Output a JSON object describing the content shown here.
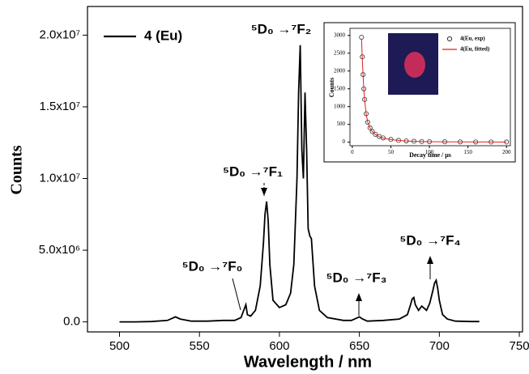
{
  "chart_data": [
    {
      "type": "line",
      "xlabel": "Wavelength / nm",
      "ylabel": "Counts",
      "x": [
        500,
        510,
        520,
        530,
        533,
        535,
        538,
        545,
        555,
        565,
        572,
        576,
        578,
        579,
        580,
        582,
        585,
        588,
        590,
        591,
        592,
        593,
        594,
        596,
        600,
        604,
        607,
        609,
        611,
        612,
        613,
        614,
        615,
        616,
        617,
        618,
        619,
        620,
        622,
        625,
        630,
        640,
        645,
        648,
        650,
        652,
        655,
        665,
        675,
        680,
        682,
        683,
        684,
        685,
        687,
        689,
        690,
        692,
        694,
        696,
        697,
        698,
        699,
        700,
        702,
        705,
        710,
        720,
        725
      ],
      "series": [
        {
          "name": "4 (Eu)",
          "color": "#000000",
          "values": [
            0,
            0,
            20000,
            100000,
            250000,
            350000,
            200000,
            50000,
            50000,
            100000,
            100000,
            300000,
            900000,
            1200000,
            500000,
            400000,
            800000,
            2500000,
            5500000,
            7500000,
            8400000,
            7000000,
            4000000,
            1500000,
            1000000,
            1200000,
            2000000,
            4000000,
            10000000,
            16000000,
            19300000,
            12000000,
            10000000,
            16000000,
            12000000,
            6500000,
            6000000,
            5800000,
            2500000,
            800000,
            300000,
            100000,
            100000,
            250000,
            350000,
            200000,
            50000,
            100000,
            200000,
            500000,
            1200000,
            1600000,
            1700000,
            1200000,
            800000,
            1100000,
            1000000,
            800000,
            1300000,
            2200000,
            2700000,
            2900000,
            2300000,
            1500000,
            500000,
            200000,
            50000,
            20000,
            20000
          ]
        }
      ],
      "xlim": [
        480,
        752
      ],
      "xticks": [
        500,
        550,
        600,
        650,
        700,
        750
      ],
      "ylim": [
        -700000,
        22000000
      ],
      "yticks": [
        {
          "value": 0,
          "label": "0.0"
        },
        {
          "value": 5000000,
          "label": "5.0x10⁶"
        },
        {
          "value": 10000000,
          "label": "1.0x10⁷"
        },
        {
          "value": 15000000,
          "label": "1.5x10⁷"
        },
        {
          "value": 20000000,
          "label": "2.0x10⁷"
        }
      ],
      "annotations": [
        "⁵D₀ →⁷F₀",
        "⁵D₀ →⁷F₁",
        "⁵D₀ →⁷F₂",
        "⁵D₀ →⁷F₃",
        "⁵D₀ →⁷F₄"
      ],
      "legend": "upper left"
    },
    {
      "type": "line",
      "xlabel": "Decay time / μs",
      "ylabel": "Counts",
      "x": [
        12,
        13,
        14,
        15,
        16,
        18,
        20,
        23,
        26,
        30,
        35,
        40,
        50,
        60,
        70,
        80,
        90,
        100,
        120,
        140,
        160,
        180,
        200
      ],
      "series": [
        {
          "name": "4(Eu, exp)",
          "color": "#333333",
          "marker": "circle",
          "values": [
            2950,
            2400,
            1900,
            1500,
            1200,
            800,
            560,
            400,
            300,
            220,
            160,
            120,
            75,
            50,
            35,
            25,
            18,
            14,
            10,
            8,
            6,
            5,
            4
          ]
        },
        {
          "name": "4(Eu, fitted)",
          "color": "#e02020",
          "marker": "none",
          "values": [
            2900,
            2350,
            1880,
            1490,
            1190,
            790,
            560,
            395,
            295,
            215,
            155,
            115,
            72,
            48,
            34,
            24,
            17,
            13,
            9,
            7,
            5,
            4,
            3
          ]
        }
      ],
      "xlim": [
        -3,
        205
      ],
      "xticks": [
        0,
        50,
        100,
        150,
        200
      ],
      "ylim": [
        -100,
        3200
      ],
      "yticks": [
        0,
        500,
        1000,
        1500,
        2000,
        2500,
        3000
      ],
      "legend": "upper right"
    }
  ]
}
